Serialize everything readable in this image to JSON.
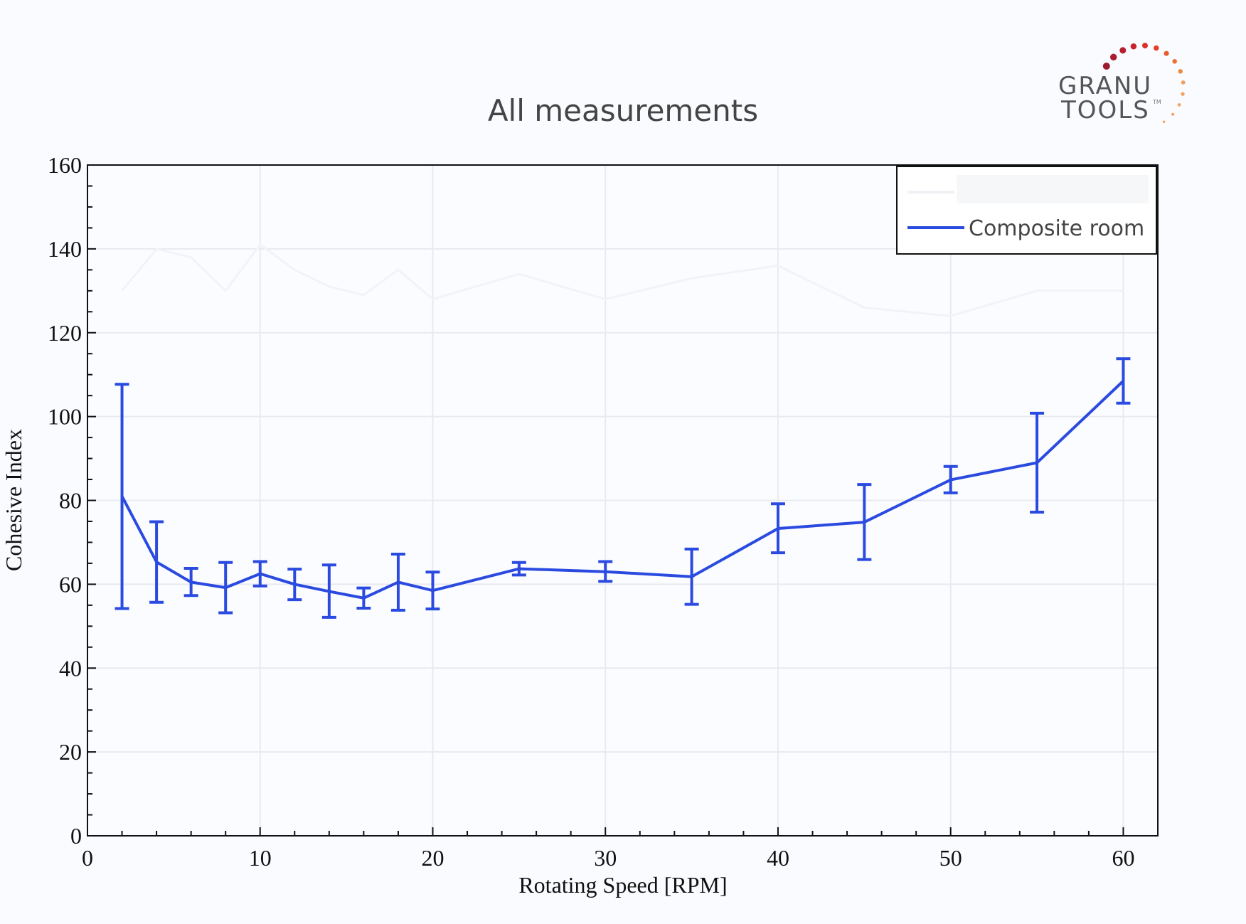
{
  "logo": {
    "line1": "GRANU",
    "line2": "TOOLS",
    "tm": "TM"
  },
  "chart_data": {
    "type": "line",
    "title": "All measurements",
    "xlabel": "Rotating Speed [RPM]",
    "ylabel": "Cohesive Index",
    "xlim": [
      0,
      62
    ],
    "ylim": [
      0,
      160
    ],
    "xticks": [
      "0",
      "10",
      "20",
      "30",
      "40",
      "50",
      "60"
    ],
    "yticks": [
      "0",
      "20",
      "40",
      "60",
      "80",
      "100",
      "120",
      "140",
      "160"
    ],
    "grid": true,
    "legend_position": "top-right",
    "series": [
      {
        "name": "",
        "color": "#f2f3f6",
        "x": [
          2,
          4,
          6,
          8,
          10,
          12,
          14,
          16,
          18,
          20,
          25,
          30,
          35,
          40,
          45,
          50,
          55,
          60
        ],
        "y": [
          130,
          140,
          138,
          130,
          141,
          135,
          131,
          129,
          135,
          128,
          134,
          128,
          133,
          136,
          126,
          124,
          130,
          130
        ]
      },
      {
        "name": "Composite room",
        "color": "#2b4ae0",
        "x": [
          2,
          4,
          6,
          8,
          10,
          12,
          14,
          16,
          18,
          20,
          25,
          30,
          35,
          40,
          45,
          50,
          55,
          60
        ],
        "y": [
          81,
          65.3,
          60.5,
          59.2,
          62.5,
          60,
          58.3,
          56.7,
          60.5,
          58.5,
          63.7,
          63,
          61.8,
          73.3,
          74.8,
          84.9,
          89,
          108.5
        ],
        "err_low": [
          54.2,
          55.7,
          57.3,
          53.2,
          59.6,
          56.3,
          52.1,
          54.3,
          53.8,
          54.1,
          62.2,
          60.7,
          55.2,
          67.5,
          65.9,
          81.8,
          77.2,
          103.2
        ],
        "err_high": [
          107.7,
          74.9,
          63.8,
          65.2,
          65.4,
          63.6,
          64.6,
          59.1,
          67.2,
          62.9,
          65.2,
          65.4,
          68.4,
          79.2,
          83.8,
          88.1,
          100.8,
          113.8
        ]
      }
    ]
  }
}
